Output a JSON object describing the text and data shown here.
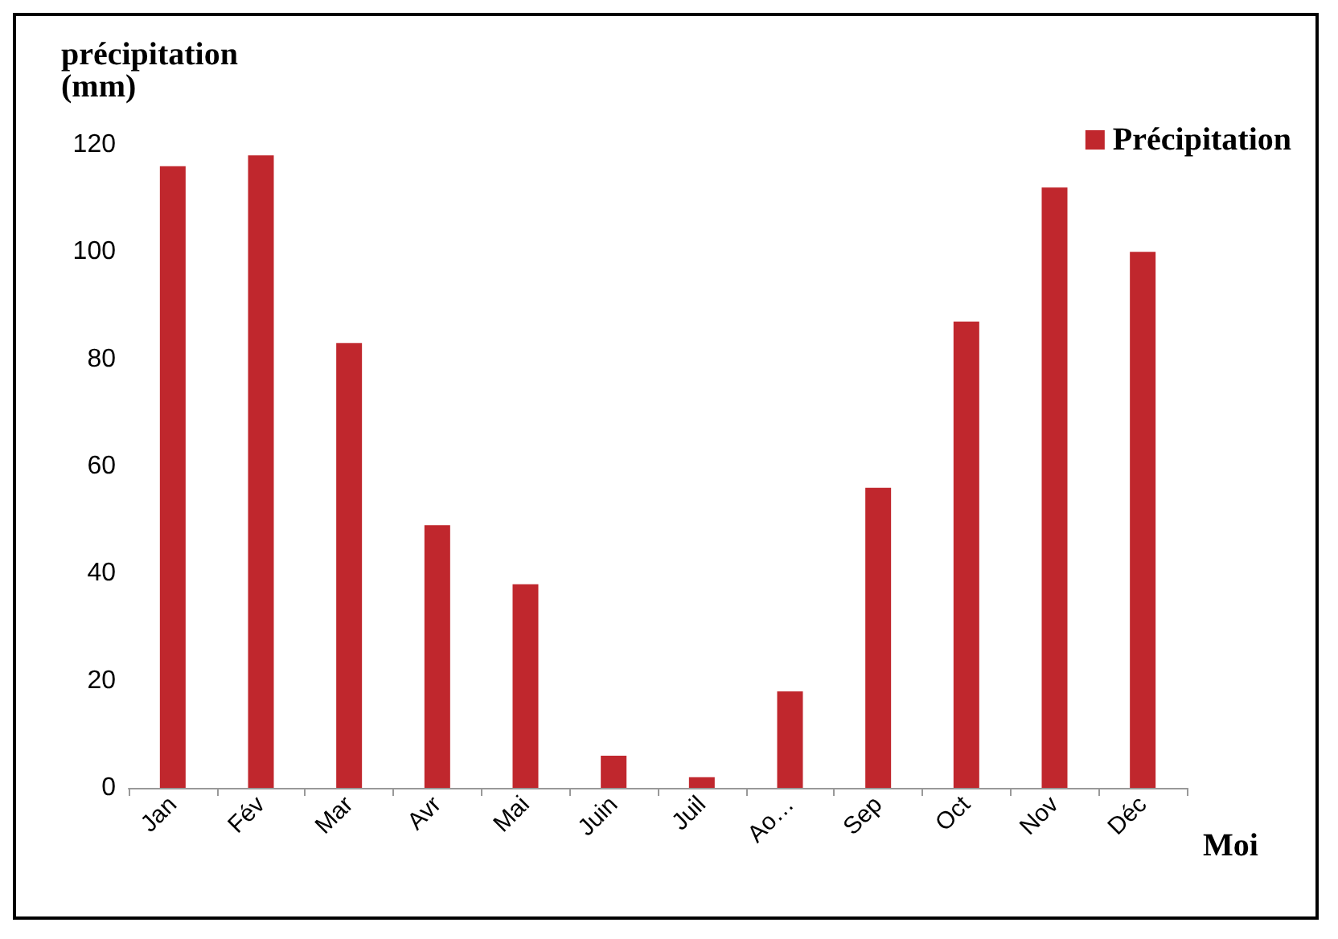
{
  "chart_data": {
    "type": "bar",
    "ylabel": "précipitation\n(mm)",
    "xlabel": "Moi",
    "categories": [
      "Jan",
      "Fév",
      "Mar",
      "Avr",
      "Mai",
      "Juin",
      "Juil",
      "Ao…",
      "Sep",
      "Oct",
      "Nov",
      "Déc"
    ],
    "series": [
      {
        "name": "Précipitation",
        "color": "#c0272d",
        "values": [
          116,
          118,
          83,
          49,
          38,
          6,
          2,
          18,
          56,
          87,
          112,
          100
        ]
      }
    ],
    "ylim": [
      0,
      120
    ],
    "yticks": [
      0,
      20,
      40,
      60,
      80,
      100,
      120
    ],
    "grid": false,
    "legend": "top right"
  }
}
